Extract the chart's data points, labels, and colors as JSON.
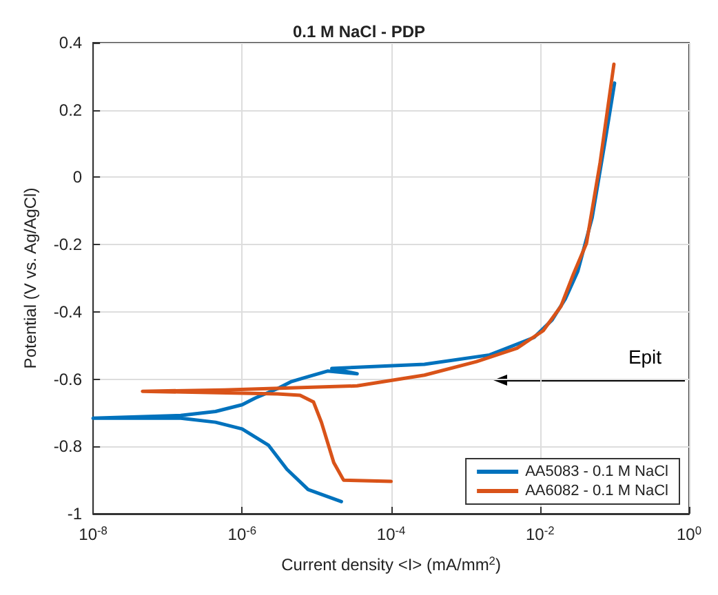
{
  "chart_data": {
    "type": "line",
    "title": "0.1 M NaCl - PDP",
    "xlabel": "Current density <I> (mA/mm$^{2}$)",
    "ylabel": "Potential (V vs. Ag/AgCl)",
    "log": "x",
    "grid": true,
    "legend": "bottom right",
    "line_style": "solid",
    "marker": "none",
    "xlim": [
      1e-08,
      1
    ],
    "xticks": [
      {
        "value": 1e-08,
        "label": "10$^{-8}$"
      },
      {
        "value": 1e-06,
        "label": "10$^{-6}$"
      },
      {
        "value": 0.0001,
        "label": "10$^{-4}$"
      },
      {
        "value": 0.01,
        "label": "10$^{-2}$"
      },
      {
        "value": 1,
        "label": "10$^{0}$"
      }
    ],
    "ylim": [
      -1,
      0.4
    ],
    "yticks": [
      -1,
      -0.8,
      -0.6,
      -0.4,
      -0.2,
      0,
      0.2,
      0.4
    ],
    "annotations": [
      "Epit"
    ],
    "series": [
      {
        "name": "AA5083 - 0.1 M NaCl",
        "color": "#0072bd",
        "x": [
          2.15e-05,
          7.7e-06,
          4e-06,
          2.25e-06,
          1e-06,
          4.4e-07,
          1.5e-07,
          1e-08,
          1.5e-07,
          4.4e-07,
          1e-06,
          1.5e-06,
          3e-06,
          4.5e-06,
          6.8e-06,
          1.4e-05,
          3.5e-05,
          1.6e-05,
          0.00028,
          0.0021,
          0.0083,
          0.0145,
          0.022,
          0.032,
          0.05,
          0.075,
          0.1
        ],
        "values": [
          -0.964,
          -0.928,
          -0.868,
          -0.796,
          -0.748,
          -0.728,
          -0.716,
          -0.716,
          -0.708,
          -0.696,
          -0.676,
          -0.656,
          -0.628,
          -0.608,
          -0.596,
          -0.576,
          -0.584,
          -0.568,
          -0.556,
          -0.528,
          -0.476,
          -0.424,
          -0.36,
          -0.28,
          -0.12,
          0.11,
          0.28
        ]
      },
      {
        "name": "AA6082 - 0.1 M NaCl",
        "color": "#d95319",
        "x": [
          0.0001,
          2.3e-05,
          1.7e-05,
          1.16e-05,
          9.1e-06,
          6e-06,
          3e-06,
          4.6e-08,
          5.8e-07,
          3.5e-05,
          0.00028,
          0.0014,
          0.0049,
          0.011,
          0.019,
          0.028,
          0.042,
          0.064,
          0.098
        ],
        "values": [
          -0.904,
          -0.9,
          -0.848,
          -0.728,
          -0.668,
          -0.648,
          -0.644,
          -0.636,
          -0.632,
          -0.62,
          -0.588,
          -0.548,
          -0.508,
          -0.456,
          -0.384,
          -0.288,
          -0.196,
          0.044,
          0.336
        ]
      }
    ]
  }
}
